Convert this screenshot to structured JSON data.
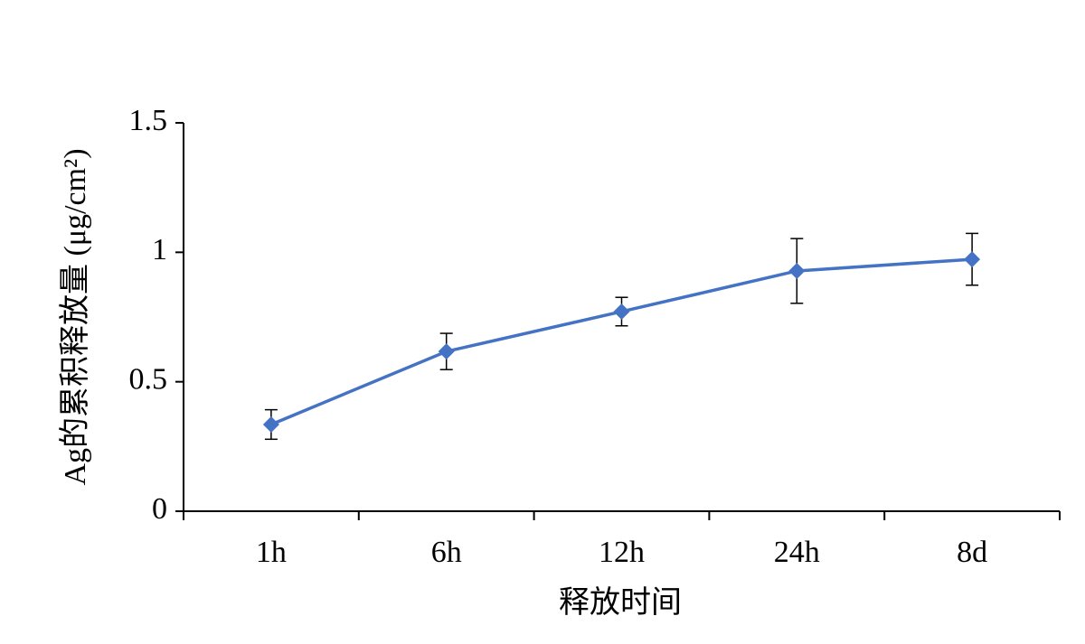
{
  "chart_data": {
    "type": "line",
    "x_label": "释放时间",
    "y_label": "Ag的累积释放量 (μg/cm²)",
    "categories": [
      "1h",
      "6h",
      "12h",
      "24h",
      "8d"
    ],
    "values": [
      0.335,
      0.617,
      0.771,
      0.928,
      0.973
    ],
    "errors": [
      0.057,
      0.07,
      0.055,
      0.125,
      0.1
    ],
    "color": "#4472c4",
    "ylim": [
      0,
      1.5
    ],
    "yticks": [
      0,
      0.5,
      1,
      1.5
    ]
  }
}
